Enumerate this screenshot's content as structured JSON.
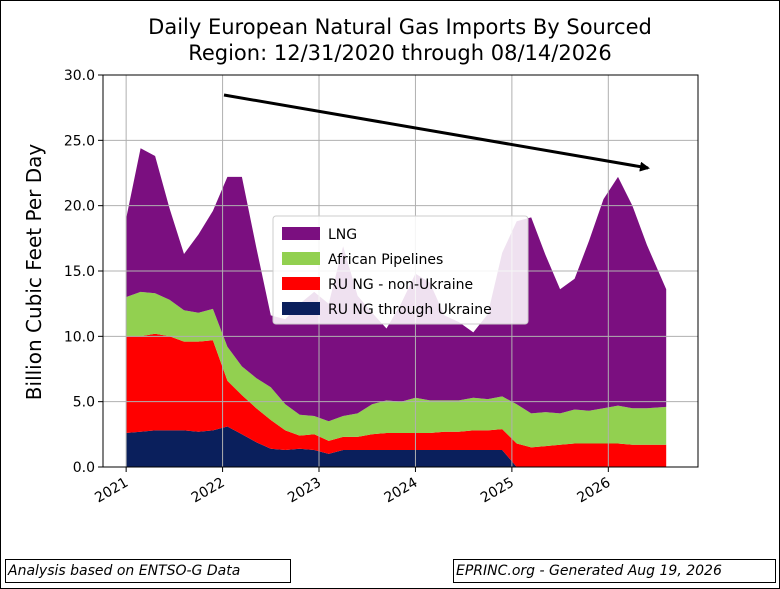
{
  "chart_data": {
    "type": "area",
    "title_lines": [
      "Daily European Natural Gas Imports By Sourced",
      "Region: 12/31/2020 through 08/14/2026"
    ],
    "ylabel": "Billion Cubic Feet Per Day",
    "xlabel": "",
    "ylim": [
      0,
      30
    ],
    "x_ticks": [
      "2021",
      "2022",
      "2023",
      "2024",
      "2025",
      "2026"
    ],
    "y_ticks": [
      "0.0",
      "5.0",
      "10.0",
      "15.0",
      "20.0",
      "25.0",
      "30.0"
    ],
    "x": [
      2021.0,
      2021.15,
      2021.3,
      2021.45,
      2021.6,
      2021.75,
      2021.9,
      2022.05,
      2022.2,
      2022.35,
      2022.5,
      2022.65,
      2022.8,
      2022.95,
      2023.1,
      2023.25,
      2023.4,
      2023.55,
      2023.7,
      2023.85,
      2024.0,
      2024.15,
      2024.3,
      2024.45,
      2024.6,
      2024.75,
      2024.9,
      2025.05,
      2025.2,
      2025.35,
      2025.5,
      2025.65,
      2025.8,
      2025.95,
      2026.1,
      2026.25,
      2026.4,
      2026.6
    ],
    "series": [
      {
        "name": "RU NG through Ukraine",
        "color": "#0a1f5c",
        "values": [
          2.6,
          2.7,
          2.8,
          2.8,
          2.8,
          2.7,
          2.8,
          3.1,
          2.5,
          1.9,
          1.4,
          1.3,
          1.4,
          1.3,
          1.0,
          1.3,
          1.3,
          1.3,
          1.3,
          1.3,
          1.3,
          1.3,
          1.3,
          1.3,
          1.3,
          1.3,
          1.3,
          0,
          0,
          0,
          0,
          0,
          0,
          0,
          0,
          0,
          0,
          0
        ]
      },
      {
        "name": "RU NG - non-Ukraine",
        "color": "#ff0000",
        "values": [
          7.4,
          7.3,
          7.4,
          7.2,
          6.8,
          6.9,
          6.9,
          3.5,
          3.0,
          2.6,
          2.2,
          1.5,
          1.0,
          1.2,
          1.0,
          1.0,
          1.0,
          1.2,
          1.3,
          1.3,
          1.3,
          1.3,
          1.4,
          1.4,
          1.5,
          1.5,
          1.6,
          1.8,
          1.5,
          1.6,
          1.7,
          1.8,
          1.8,
          1.8,
          1.8,
          1.7,
          1.7,
          1.7
        ]
      },
      {
        "name": "African Pipelines",
        "color": "#92d050",
        "values": [
          3.0,
          3.4,
          3.1,
          2.8,
          2.4,
          2.2,
          2.4,
          2.6,
          2.2,
          2.3,
          2.5,
          2.0,
          1.6,
          1.4,
          1.5,
          1.6,
          1.8,
          2.3,
          2.5,
          2.4,
          2.7,
          2.5,
          2.4,
          2.4,
          2.5,
          2.4,
          2.5,
          3.0,
          2.6,
          2.6,
          2.4,
          2.6,
          2.5,
          2.7,
          2.9,
          2.8,
          2.8,
          2.9
        ]
      },
      {
        "name": "LNG",
        "color": "#7b0f80",
        "values": [
          6.0,
          11.0,
          10.5,
          7.0,
          4.3,
          6.0,
          7.5,
          13.0,
          14.5,
          10.0,
          5.5,
          6.5,
          8.5,
          9.5,
          9.0,
          13.0,
          9.0,
          7.0,
          5.5,
          7.5,
          9.5,
          9.0,
          6.5,
          6.0,
          5.0,
          6.5,
          11.0,
          14.0,
          15.0,
          12.0,
          9.5,
          10.0,
          13.0,
          16.0,
          17.5,
          15.5,
          12.5,
          9.0
        ]
      }
    ],
    "legend_placement": "center",
    "legend_order": [
      "LNG",
      "African Pipelines",
      "RU NG - non-Ukraine",
      "RU NG through Ukraine"
    ],
    "grid": true,
    "annotation": "black arrow trending downward from 2022 to 2026"
  },
  "footer": {
    "left": "Analysis based on ENTSO-G Data",
    "right": "EPRINC.org - Generated Aug 19, 2026"
  }
}
